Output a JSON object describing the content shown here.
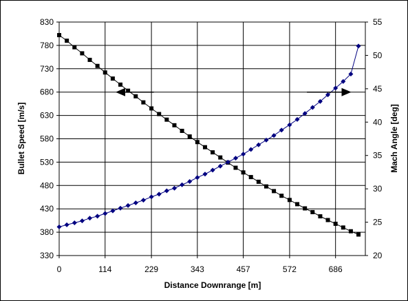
{
  "chart_data": {
    "type": "line",
    "title": "",
    "xlabel": "Distance Downrange [m]",
    "ylabel_left": "Bullet Speed [m/s]",
    "ylabel_right": "Mach Angle [deg]",
    "x_ticks": [
      0,
      114,
      229,
      343,
      457,
      572,
      686
    ],
    "y_left_ticks": [
      330,
      380,
      430,
      480,
      530,
      580,
      630,
      680,
      730,
      780,
      830
    ],
    "y_right_ticks": [
      20,
      25,
      30,
      35,
      40,
      45,
      50,
      55
    ],
    "xlim": [
      0,
      760
    ],
    "ylim_left": [
      330,
      830
    ],
    "ylim_right": [
      20,
      55
    ],
    "grid": true,
    "legend": "none",
    "series": [
      {
        "axis": "left",
        "color": "#000000",
        "marker": "square",
        "x": [
          0,
          19,
          38,
          57,
          76,
          95,
          114,
          133,
          152,
          171,
          190,
          209,
          229,
          248,
          267,
          286,
          305,
          324,
          343,
          362,
          381,
          400,
          419,
          438,
          457,
          476,
          495,
          514,
          533,
          552,
          572,
          591,
          610,
          629,
          648,
          667,
          686,
          705,
          724,
          743
        ],
        "values": [
          802,
          790,
          776,
          763,
          749,
          736,
          722,
          709,
          696,
          683,
          671,
          658,
          645,
          633,
          621,
          609,
          597,
          585,
          573,
          562,
          551,
          540,
          529,
          518,
          508,
          498,
          488,
          478,
          468,
          458,
          449,
          440,
          431,
          423,
          414,
          406,
          398,
          390,
          382,
          375
        ]
      },
      {
        "axis": "right",
        "color": "#000080",
        "marker": "diamond",
        "x": [
          0,
          19,
          38,
          57,
          76,
          95,
          114,
          133,
          152,
          171,
          190,
          209,
          229,
          248,
          267,
          286,
          305,
          324,
          343,
          362,
          381,
          400,
          419,
          438,
          457,
          476,
          495,
          514,
          533,
          552,
          572,
          591,
          610,
          629,
          648,
          667,
          686,
          705,
          724,
          743
        ],
        "values": [
          24.3,
          24.6,
          24.9,
          25.2,
          25.6,
          25.9,
          26.3,
          26.7,
          27.1,
          27.5,
          27.9,
          28.3,
          28.8,
          29.2,
          29.7,
          30.1,
          30.6,
          31.1,
          31.7,
          32.2,
          32.8,
          33.4,
          34.0,
          34.6,
          35.2,
          35.9,
          36.6,
          37.3,
          38.0,
          38.8,
          39.6,
          40.4,
          41.3,
          42.2,
          43.1,
          44.1,
          45.1,
          46.1,
          47.2,
          51.4
        ]
      }
    ],
    "annotations": [
      {
        "type": "arrow",
        "direction": "left",
        "from_x": 235,
        "to_x": 140,
        "y": 680,
        "axis": "left"
      },
      {
        "type": "arrow",
        "direction": "right",
        "from_x": 615,
        "to_x": 725,
        "y": 680,
        "axis": "left"
      }
    ]
  }
}
